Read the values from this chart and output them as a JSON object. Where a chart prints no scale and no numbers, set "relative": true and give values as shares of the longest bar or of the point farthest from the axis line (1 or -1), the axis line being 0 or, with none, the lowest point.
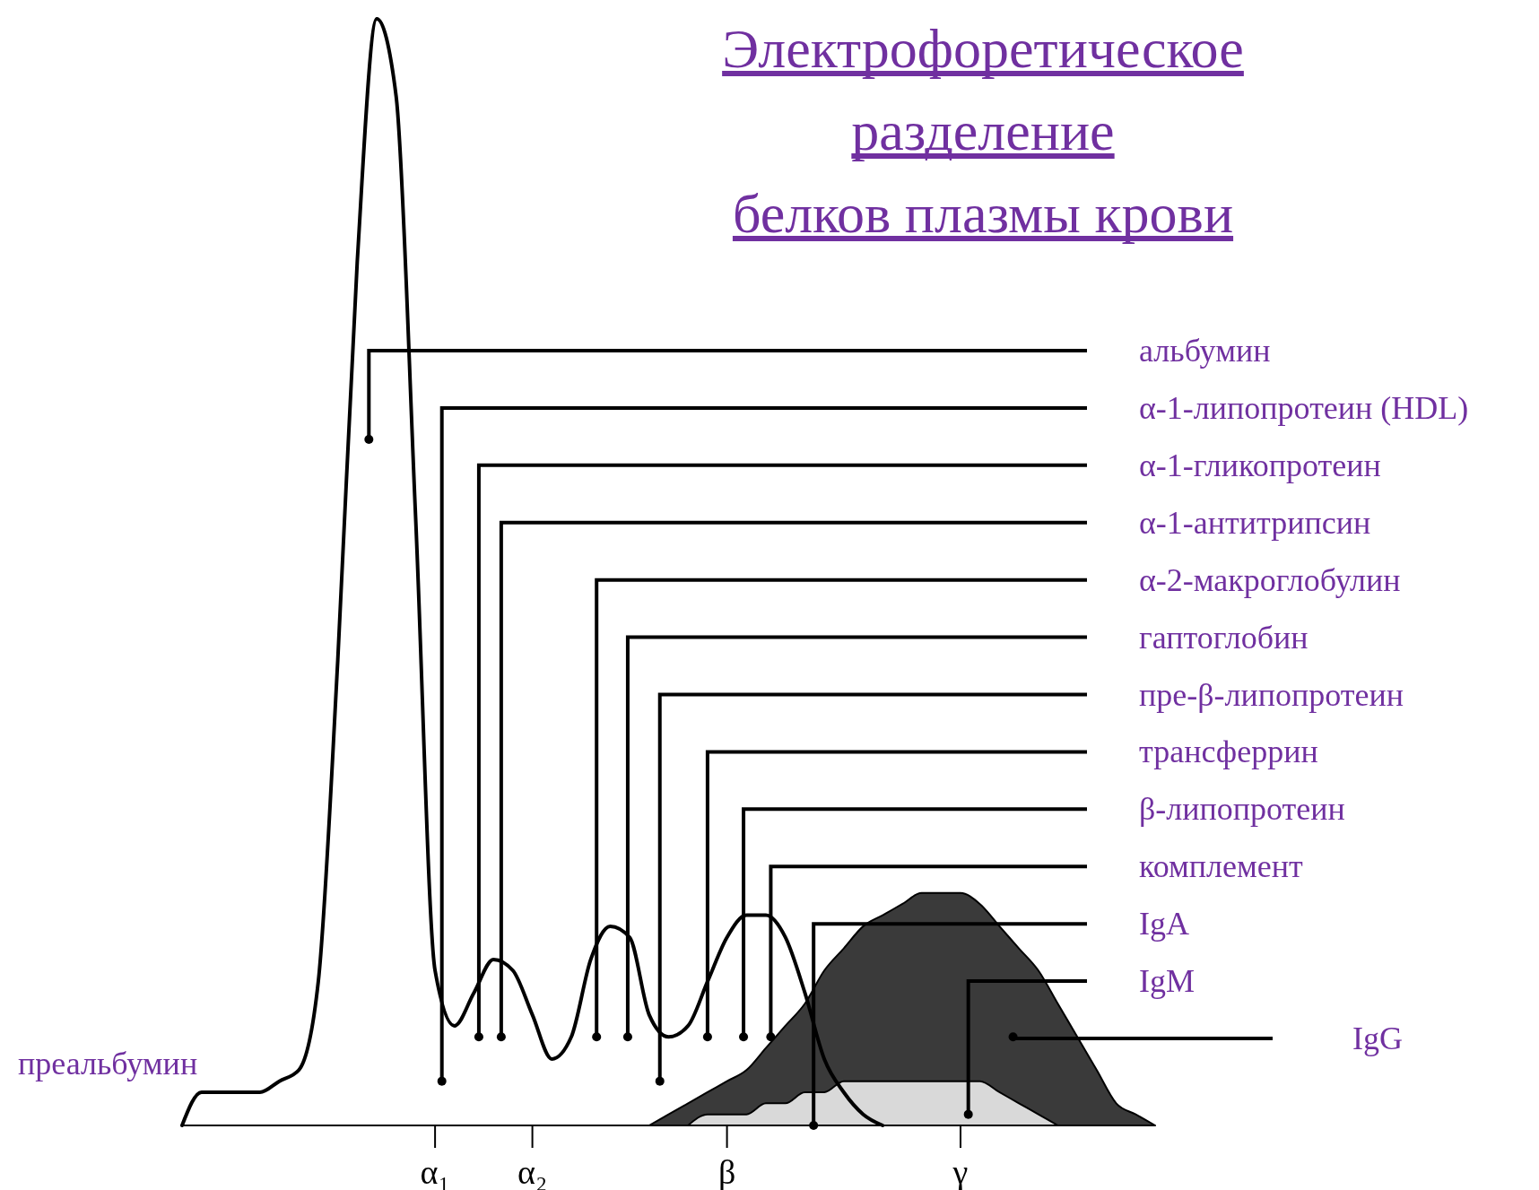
{
  "chart_data": {
    "type": "line",
    "relative": true,
    "title": "Электрофоретическое разделение\nбелков плазмы крови",
    "categories": [
      null,
      null,
      null,
      null,
      null,
      null,
      null,
      null,
      null,
      null,
      null,
      null,
      null,
      "α₁",
      null,
      null,
      null,
      null,
      "α₂",
      null,
      null,
      null,
      null,
      null,
      null,
      null,
      null,
      null,
      "β",
      null,
      null,
      null,
      null,
      null,
      null,
      null,
      null,
      null,
      null,
      null,
      "γ",
      null,
      null,
      null,
      null,
      null,
      null,
      null,
      null,
      null,
      null
    ],
    "series": [
      {
        "color": "#000000",
        "values": [
          0,
          0.03,
          0.03,
          0.03,
          0.03,
          0.04,
          0.05,
          0.13,
          0.42,
          0.78,
          1,
          0.93,
          0.55,
          0.14,
          0.09,
          0.12,
          0.15,
          0.14,
          0.1,
          0.06,
          0.08,
          0.15,
          0.18,
          0.17,
          0.1,
          0.08,
          0.09,
          0.13,
          0.17,
          0.19,
          0.19,
          0.17,
          0.12,
          0.06,
          0.03,
          0.01,
          0,
          null,
          null,
          null,
          null,
          null,
          null,
          null,
          null,
          null,
          null,
          null,
          null,
          null,
          null
        ]
      },
      {
        "type": "area",
        "color": "#3a3a3a",
        "values": [
          null,
          null,
          null,
          null,
          null,
          null,
          null,
          null,
          null,
          null,
          null,
          null,
          null,
          null,
          null,
          null,
          null,
          null,
          null,
          null,
          null,
          null,
          null,
          null,
          0,
          0.01,
          0.02,
          0.03,
          0.04,
          0.05,
          0.07,
          0.09,
          0.11,
          0.14,
          0.16,
          0.18,
          0.19,
          0.2,
          0.21,
          0.21,
          0.21,
          0.2,
          0.18,
          0.16,
          0.14,
          0.11,
          0.08,
          0.05,
          0.02,
          0.01,
          0
        ]
      },
      {
        "type": "area",
        "color": "#d9d9d9",
        "values": [
          null,
          null,
          null,
          null,
          null,
          null,
          null,
          null,
          null,
          null,
          null,
          null,
          null,
          null,
          null,
          null,
          null,
          null,
          null,
          null,
          null,
          null,
          null,
          null,
          null,
          null,
          0,
          0.01,
          0.01,
          0.01,
          0.02,
          0.02,
          0.03,
          0.03,
          0.04,
          0.04,
          0.04,
          0.04,
          0.04,
          0.04,
          0.04,
          0.04,
          0.03,
          0.02,
          0.01,
          0,
          null,
          null,
          null,
          null,
          null
        ]
      }
    ],
    "annotations": [
      "альбумин",
      "α-1-липопротеин (HDL)",
      "α-1-гликопротеин",
      "α-1-антитрипсин",
      "α-2-макроглобулин",
      "гаптоглобин",
      "пре-β-липопротеин",
      "трансферрин",
      "β-липопротеин",
      "комплемент",
      "IgA",
      "IgM",
      "IgG",
      "преальбумин"
    ]
  }
}
